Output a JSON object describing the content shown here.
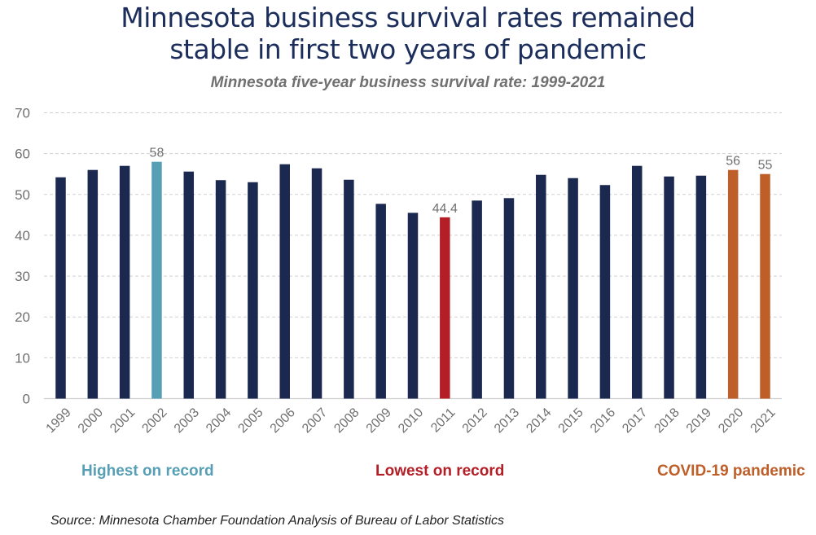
{
  "chart_data": {
    "type": "bar",
    "title": "Minnesota business survival rates remained stable in first two years of pandemic",
    "subtitle": "Minnesota five-year business survival rate: 1999-2021",
    "xlabel": "",
    "ylabel": "",
    "ylim": [
      0,
      70
    ],
    "yticks": [
      0,
      10,
      20,
      30,
      40,
      50,
      60,
      70
    ],
    "grid": true,
    "categories": [
      "1999",
      "2000",
      "2001",
      "2002",
      "2003",
      "2004",
      "2005",
      "2006",
      "2007",
      "2008",
      "2009",
      "2010",
      "2011",
      "2012",
      "2013",
      "2014",
      "2015",
      "2016",
      "2017",
      "2018",
      "2019",
      "2020",
      "2021"
    ],
    "values": [
      54.2,
      56.0,
      57.0,
      58,
      55.6,
      53.5,
      53.0,
      57.4,
      56.4,
      53.6,
      47.7,
      45.5,
      44.4,
      48.5,
      49.1,
      54.8,
      54.0,
      52.3,
      57.0,
      54.4,
      54.6,
      56,
      55
    ],
    "bar_groups": [
      "base",
      "base",
      "base",
      "highest",
      "base",
      "base",
      "base",
      "base",
      "base",
      "base",
      "base",
      "base",
      "lowest",
      "base",
      "base",
      "base",
      "base",
      "base",
      "base",
      "base",
      "base",
      "covid",
      "covid"
    ],
    "data_labels": {
      "2002": "58",
      "2011": "44.4",
      "2020": "56",
      "2021": "55"
    },
    "colors": {
      "base": "#1b2850",
      "highest": "#569fb4",
      "lowest": "#b41f27",
      "covid": "#be5e28",
      "title": "#1b2d5a",
      "axis_text": "#707070",
      "grid": "#d0d0d0"
    },
    "annotations": [
      {
        "text": "Highest on record",
        "group": "highest"
      },
      {
        "text": "Lowest on record",
        "group": "lowest"
      },
      {
        "text": "COVID-19 pandemic",
        "group": "covid"
      }
    ],
    "source": "Source: Minnesota Chamber Foundation Analysis of Bureau of Labor Statistics"
  }
}
